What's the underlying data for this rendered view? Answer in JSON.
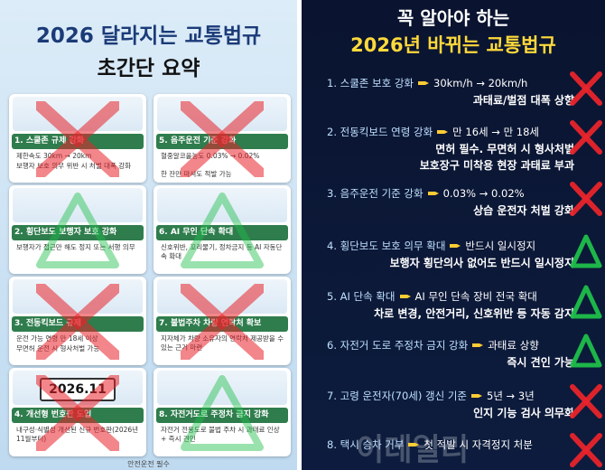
{
  "left": {
    "title": "2026 달라지는 교통법규",
    "subtitle": "초간단 요약",
    "cards": [
      {
        "heading": "1. 스쿨존 규제 강화",
        "bullets": [
          "제한속도 30km → 20km",
          "보행자 보호 의무 위반 시 처벌 대폭 강화"
        ]
      },
      {
        "heading": "5. 음주운전 기준 강화",
        "bullets": [
          "혈중알코올농도 0.03% → 0.02%",
          "한 잔만 마셔도 적발 가능"
        ]
      },
      {
        "heading": "2. 횡단보도 보행자 보호 강화",
        "bullets": [
          "보행자가 접근만 해도 정지 또는 서행 의무"
        ]
      },
      {
        "heading": "6. AI 무인 단속 확대",
        "bullets": [
          "신호위반, 꼬리물기, 정차금지 등 AI 자동단속 확대"
        ]
      },
      {
        "heading": "3. 전동킥보드 규제",
        "bullets": [
          "운전 가능 연령 만 18세 이상",
          "무면허 운전 시 형사처벌 가능"
        ]
      },
      {
        "heading": "7. 불법주차 차량 연락처 확보",
        "bullets": [
          "지자체가 차량 소유자의 연락처 제공받을 수 있는 근거 마련"
        ]
      },
      {
        "heading": "4. 개선형 번호판 도입",
        "bullets": [
          "내구성·식별성 개선된 신규 번호판(2026년 11월부터)"
        ]
      },
      {
        "heading": "8. 자전거도로 주정차 금지 강화",
        "bullets": [
          "자전거 전용도로 불법 주차 시 과태료 인상 + 즉시 견인"
        ]
      }
    ],
    "plate": "2026.11",
    "footer": "안전운전 필수"
  },
  "right": {
    "title_top": "꼭 알아야 하는",
    "title": "2026년 바뀌는 교통법규",
    "items": [
      {
        "topic": "1. 스쿨존 보호 강화",
        "change": "30km/h → 20km/h",
        "details": [
          "과태료/벌점 대폭 상향"
        ]
      },
      {
        "topic": "2. 전동킥보드 연령 강화",
        "change": "만 16세 → 만 18세",
        "details": [
          "면허 필수. 무면허 시 형사처벌",
          "보호장구 미착용 현장 과태료 부과"
        ]
      },
      {
        "topic": "3. 음주운전 기준 강화",
        "change": "0.03% → 0.02%",
        "details": [
          "상습 운전자 처벌 강화"
        ]
      },
      {
        "topic": "4. 횡단보도 보호 의무 확대",
        "change": "반드시 일시정지",
        "details": [
          "보행자 횡단의사 없어도 반드시 일시정지"
        ]
      },
      {
        "topic": "5. AI 단속 확대",
        "change": "AI 무인 단속 장비 전국 확대",
        "details": [
          "차로 변경, 안전거리, 신호위반 등 자동 감지"
        ]
      },
      {
        "topic": "6. 자전거 도로 주정차 금지 강화",
        "change": "과태료 상향",
        "details": [
          "즉시 견인 가능"
        ]
      },
      {
        "topic": "7. 고령 운전자(70세) 갱신 기준",
        "change": "5년 → 3년",
        "details": [
          "인지 기능 검사 의무화"
        ]
      },
      {
        "topic": "8. 택시 승차 거부",
        "change": "첫 적발 시 자격정지 처분",
        "details": []
      }
    ]
  },
  "watermark": "이데일리"
}
